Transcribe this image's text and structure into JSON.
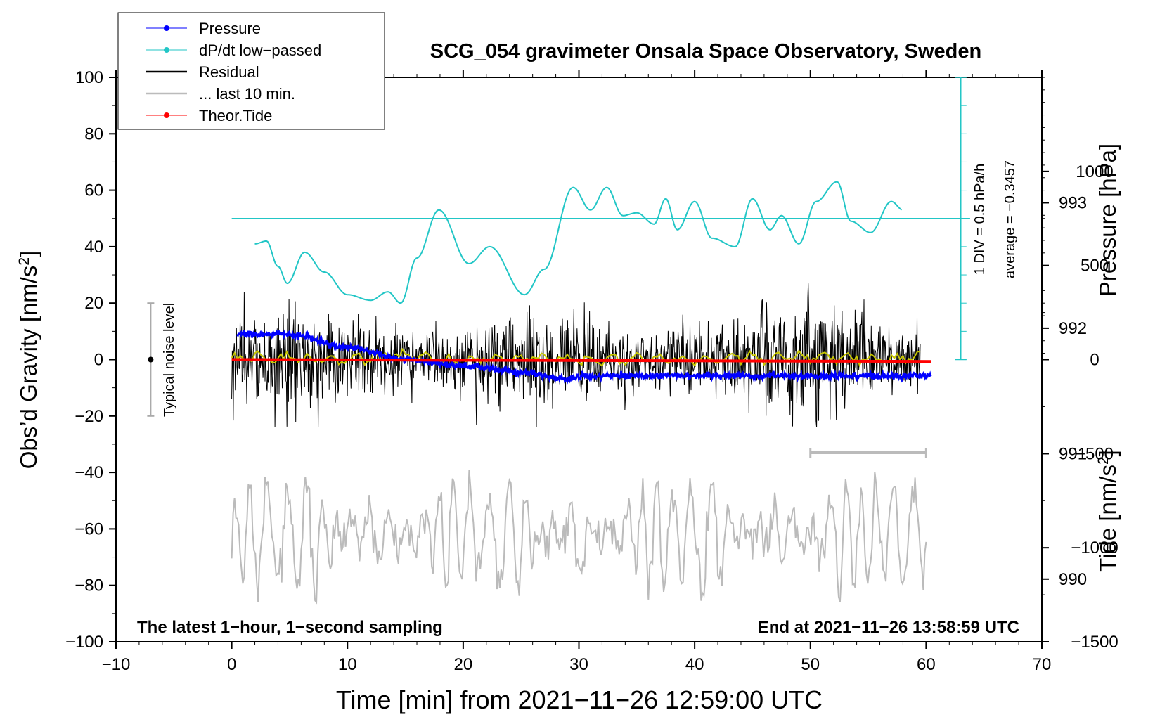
{
  "chart_data": {
    "type": "line",
    "title": "SCG_054 gravimeter Onsala Space Observatory, Sweden",
    "xlabel": "Time [min] from 2021−11−26 12:59:00 UTC",
    "ylabel_left_main": "Obs’d Gravity [nm/s",
    "ylabel_left_sup": "2",
    "ylabel_left_tail": "]",
    "ylabel_right_pressure": "Pressure [hPa]",
    "ylabel_right_tide_main": "Tide [nm/s",
    "ylabel_right_tide_sup": "2",
    "ylabel_right_tide_tail": "]",
    "xlim": [
      -10,
      70
    ],
    "ylim_left": [
      -100,
      100
    ],
    "pressure_range": [
      989.5,
      994
    ],
    "tide_range": [
      -1500,
      1500
    ],
    "x_ticks": [
      "−10",
      "0",
      "10",
      "20",
      "30",
      "40",
      "50",
      "60",
      "70"
    ],
    "y_ticks_left": [
      "100",
      "80",
      "60",
      "40",
      "20",
      "0",
      "−20",
      "−40",
      "−60",
      "−80",
      "−100"
    ],
    "pressure_ticks": [
      "993",
      "992",
      "991",
      "990"
    ],
    "tide_ticks": [
      "1000",
      "500",
      "0",
      "−500",
      "−1000",
      "−1500"
    ],
    "legend": [
      {
        "label": "Pressure",
        "color": "#0000ff",
        "marker": true
      },
      {
        "label": "dP/dt low−passed",
        "color": "#22c6c6",
        "marker": true
      },
      {
        "label": "Residual",
        "color": "#000000",
        "marker": false
      },
      {
        "label": "... last 10 min.",
        "color": "#bbbbbb",
        "marker": false
      },
      {
        "label": "Theor.Tide",
        "color": "#ff0000",
        "marker": true
      }
    ],
    "annotations": {
      "left_bottom": "The latest 1−hour, 1−second sampling",
      "right_bottom": "End at 2021−11−26 13:58:59 UTC",
      "noise_label": "Typical noise level",
      "div_label": "1 DIV = 0.5 hPa/h",
      "average_label": "average = −0.3457"
    },
    "colors": {
      "pressure": "#0000ff",
      "dpdt": "#22c6c6",
      "residual": "#000000",
      "residual_smooth": "#c8c800",
      "last10": "#bbbbbb",
      "tide": "#ff0000"
    },
    "series": [
      {
        "name": "Pressure",
        "unit": "hPa",
        "x": [
          0.5,
          5,
          10,
          15,
          20,
          25,
          28.5,
          32,
          40,
          50,
          60.4
        ],
        "values": [
          991.95,
          991.95,
          991.85,
          991.75,
          991.7,
          991.65,
          991.6,
          991.62,
          991.62,
          991.62,
          991.62
        ]
      },
      {
        "name": "dP/dt low−passed",
        "x": [
          2,
          3,
          4,
          4.8,
          6.3,
          8,
          10,
          12,
          13.5,
          14.6,
          16,
          17.9,
          20.5,
          22.3,
          25.3,
          27,
          29.5,
          31,
          32.4,
          33.8,
          35,
          36.5,
          37.5,
          38.5,
          40,
          41.5,
          43.5,
          45,
          46.5,
          47.5,
          49,
          50.5,
          52.3,
          53.5,
          55.2,
          57,
          58
        ],
        "values": [
          41,
          42,
          33,
          27,
          38,
          31,
          23,
          21,
          24,
          20,
          36,
          53,
          34,
          40,
          23,
          32,
          61,
          53,
          61,
          51,
          52,
          48,
          57,
          46,
          56,
          43,
          40,
          57,
          46,
          51,
          41,
          56,
          63,
          49,
          45,
          56,
          53
        ]
      },
      {
        "name": "Residual smoothed",
        "x": [
          0,
          5,
          10,
          15,
          20,
          25,
          30,
          35,
          40,
          45,
          50,
          55,
          60
        ],
        "values": [
          1,
          0.5,
          0,
          1,
          -0.5,
          0.5,
          0,
          0.5,
          0,
          0.5,
          1,
          0.5,
          1
        ]
      },
      {
        "name": "Theor.Tide",
        "unit": "nm/s2",
        "x": [
          0,
          60.4
        ],
        "values": [
          0,
          -10
        ]
      }
    ],
    "dpdt_average_level": 50,
    "last10_window_minutes": [
      50,
      60
    ],
    "noise_level_nms2": [
      -20,
      20
    ]
  }
}
